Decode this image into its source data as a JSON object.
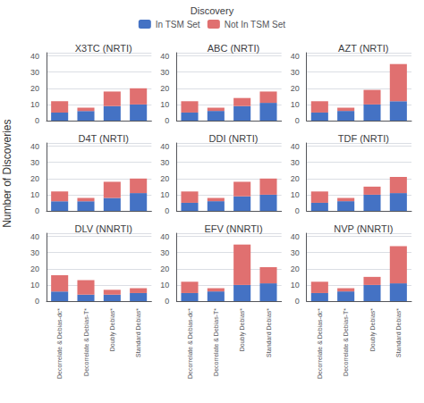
{
  "chart_data": [
    {
      "type": "bar",
      "title": "X3TC (NRTI)",
      "legend": "top",
      "legend_title": "Discovery",
      "categories": [
        "Decorrelate & Debias-dc*",
        "Decorrelate & Debias-T*",
        "Doubly Debias*",
        "Standard Debias*"
      ],
      "series": [
        {
          "name": "In TSM Set",
          "color": "#4472C4",
          "values": [
            5,
            6,
            9,
            10
          ]
        },
        {
          "name": "Not In TSM Set",
          "color": "#E07070",
          "values": [
            7,
            2,
            9,
            10
          ]
        }
      ],
      "ylim": [
        0,
        42
      ],
      "yticks": [
        0,
        10,
        20,
        30,
        40
      ],
      "stacked": true,
      "grid": true,
      "tick_labels": "y"
    },
    {
      "type": "bar",
      "title": "ABC (NRTI)",
      "categories": [
        "Decorrelate & Debias-dc*",
        "Decorrelate & Debias-T*",
        "Doubly Debias*",
        "Standard Debias*"
      ],
      "series": [
        {
          "name": "In TSM Set",
          "color": "#4472C4",
          "values": [
            5,
            6,
            9,
            11
          ]
        },
        {
          "name": "Not In TSM Set",
          "color": "#E07070",
          "values": [
            7,
            2,
            5,
            7
          ]
        }
      ],
      "ylim": [
        0,
        42
      ],
      "yticks": [
        0,
        10,
        20,
        30,
        40
      ],
      "stacked": true,
      "grid": true,
      "tick_labels": "y"
    },
    {
      "type": "bar",
      "title": "AZT (NRTI)",
      "categories": [
        "Decorrelate & Debias-dc*",
        "Decorrelate & Debias-T*",
        "Doubly Debias*",
        "Standard Debias*"
      ],
      "series": [
        {
          "name": "In TSM Set",
          "color": "#4472C4",
          "values": [
            5,
            6,
            10,
            12
          ]
        },
        {
          "name": "Not In TSM Set",
          "color": "#E07070",
          "values": [
            7,
            2,
            9,
            23
          ]
        }
      ],
      "ylim": [
        0,
        42
      ],
      "yticks": [
        0,
        10,
        20,
        30,
        40
      ],
      "stacked": true,
      "grid": true,
      "tick_labels": "y"
    },
    {
      "type": "bar",
      "title": "D4T (NRTI)",
      "ylabel": "Number of Discoveries",
      "categories": [
        "Decorrelate & Debias-dc*",
        "Decorrelate & Debias-T*",
        "Doubly Debias*",
        "Standard Debias*"
      ],
      "series": [
        {
          "name": "In TSM Set",
          "color": "#4472C4",
          "values": [
            6,
            6,
            8,
            11
          ]
        },
        {
          "name": "Not In TSM Set",
          "color": "#E07070",
          "values": [
            6,
            2,
            10,
            9
          ]
        }
      ],
      "ylim": [
        0,
        42
      ],
      "yticks": [
        0,
        10,
        20,
        30,
        40
      ],
      "stacked": true,
      "grid": true,
      "tick_labels": "y"
    },
    {
      "type": "bar",
      "title": "DDI (NRTI)",
      "categories": [
        "Decorrelate & Debias-dc*",
        "Decorrelate & Debias-T*",
        "Doubly Debias*",
        "Standard Debias*"
      ],
      "series": [
        {
          "name": "In TSM Set",
          "color": "#4472C4",
          "values": [
            5,
            6,
            9,
            10
          ]
        },
        {
          "name": "Not In TSM Set",
          "color": "#E07070",
          "values": [
            7,
            2,
            9,
            10
          ]
        }
      ],
      "ylim": [
        0,
        42
      ],
      "yticks": [
        0,
        10,
        20,
        30,
        40
      ],
      "stacked": true,
      "grid": true,
      "tick_labels": "y"
    },
    {
      "type": "bar",
      "title": "TDF (NRTI)",
      "categories": [
        "Decorrelate & Debias-dc*",
        "Decorrelate & Debias-T*",
        "Doubly Debias*",
        "Standard Debias*"
      ],
      "series": [
        {
          "name": "In TSM Set",
          "color": "#4472C4",
          "values": [
            5,
            6,
            10,
            11
          ]
        },
        {
          "name": "Not In TSM Set",
          "color": "#E07070",
          "values": [
            7,
            2,
            5,
            10
          ]
        }
      ],
      "ylim": [
        0,
        42
      ],
      "yticks": [
        0,
        10,
        20,
        30,
        40
      ],
      "stacked": true,
      "grid": true,
      "tick_labels": "y"
    },
    {
      "type": "bar",
      "title": "DLV (NNRTI)",
      "categories": [
        "Decorrelate & Debias-dc*",
        "Decorrelate & Debias-T*",
        "Doubly Debias*",
        "Standard Debias*"
      ],
      "series": [
        {
          "name": "In TSM Set",
          "color": "#4472C4",
          "values": [
            6,
            4,
            4,
            5
          ]
        },
        {
          "name": "Not In TSM Set",
          "color": "#E07070",
          "values": [
            10,
            9,
            3,
            3
          ]
        }
      ],
      "ylim": [
        0,
        42
      ],
      "yticks": [
        0,
        10,
        20,
        30,
        40
      ],
      "stacked": true,
      "grid": true
    },
    {
      "type": "bar",
      "title": "EFV (NNRTI)",
      "categories": [
        "Decorrelate & Debias-dc*",
        "Decorrelate & Debias-T*",
        "Doubly Debias*",
        "Standard Debias*"
      ],
      "series": [
        {
          "name": "In TSM Set",
          "color": "#4472C4",
          "values": [
            5,
            6,
            10,
            11
          ]
        },
        {
          "name": "Not In TSM Set",
          "color": "#E07070",
          "values": [
            7,
            2,
            25,
            10
          ]
        }
      ],
      "ylim": [
        0,
        42
      ],
      "yticks": [
        0,
        10,
        20,
        30,
        40
      ],
      "stacked": true,
      "grid": true
    },
    {
      "type": "bar",
      "title": "NVP (NNRTI)",
      "categories": [
        "Decorrelate & Debias-dc*",
        "Decorrelate & Debias-T*",
        "Doubly Debias*",
        "Standard Debias*"
      ],
      "series": [
        {
          "name": "In TSM Set",
          "color": "#4472C4",
          "values": [
            5,
            6,
            10,
            11
          ]
        },
        {
          "name": "Not In TSM Set",
          "color": "#E07070",
          "values": [
            7,
            2,
            5,
            23
          ]
        }
      ],
      "ylim": [
        0,
        42
      ],
      "yticks": [
        0,
        10,
        20,
        30,
        40
      ],
      "stacked": true,
      "grid": true
    }
  ]
}
